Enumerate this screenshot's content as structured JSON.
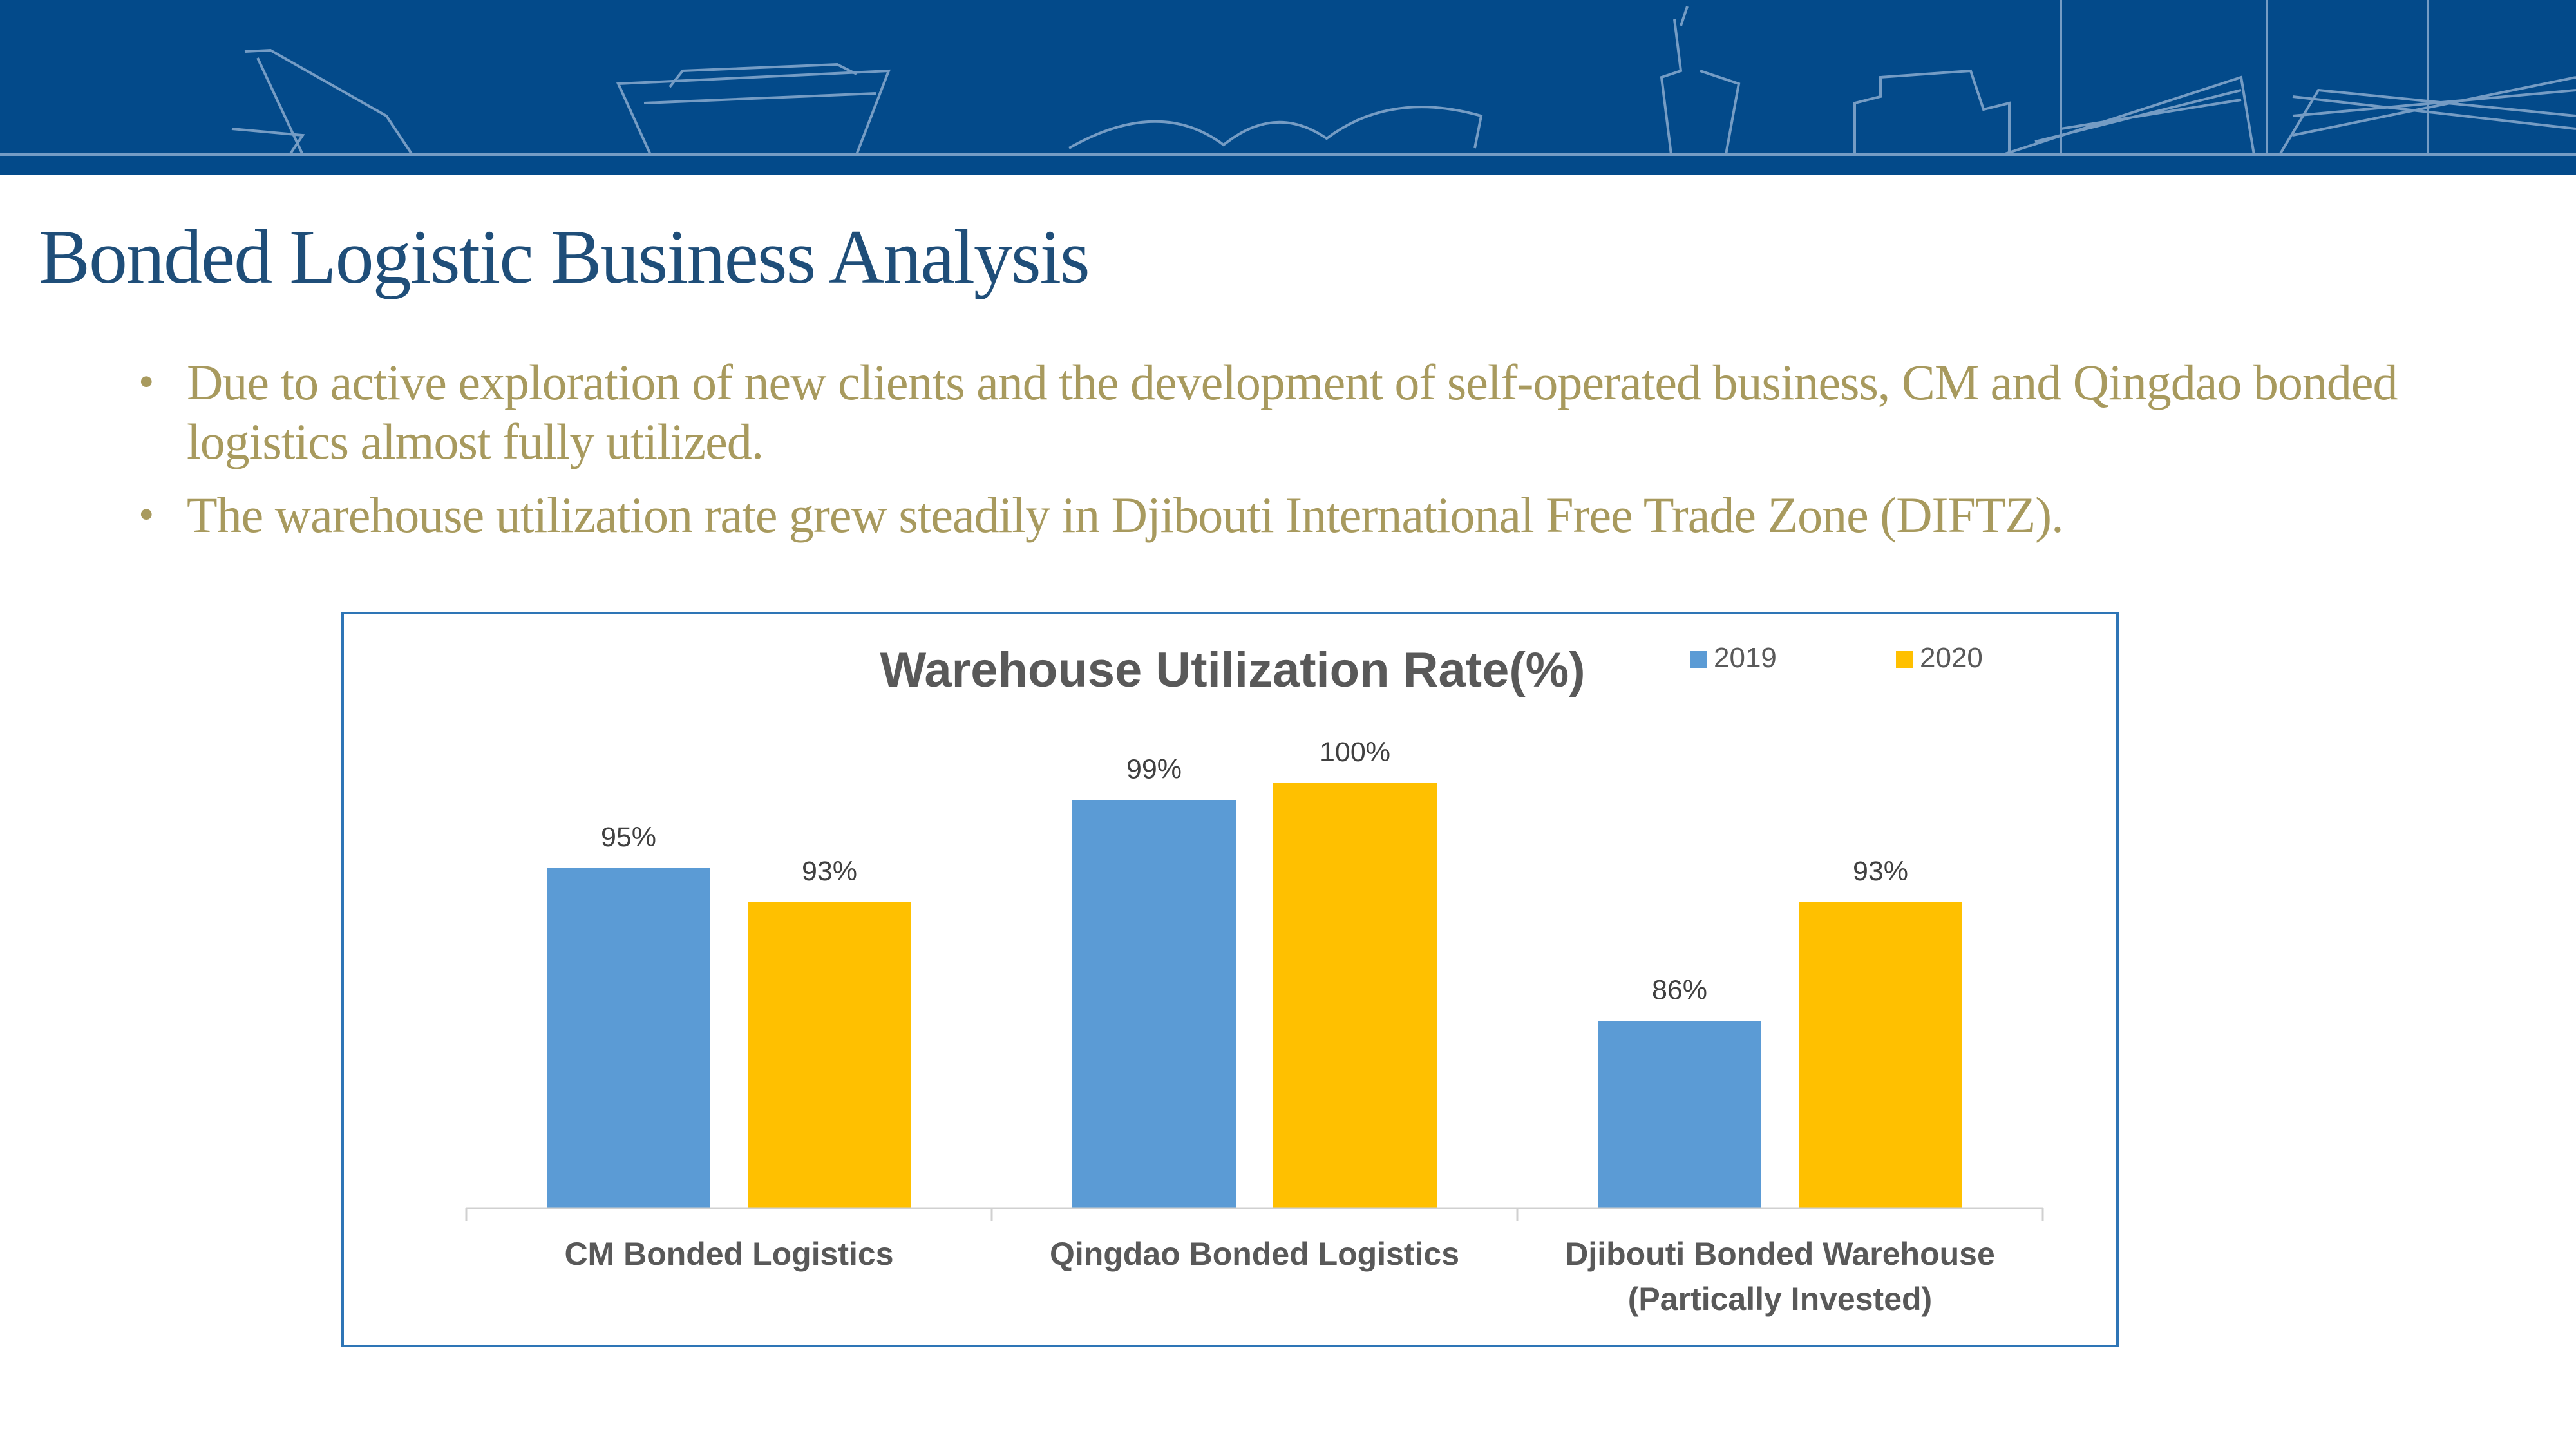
{
  "slide": {
    "title": "Bonded Logistic Business Analysis",
    "bullets": [
      "Due to active exploration of new clients and the development of self-operated business, CM and Qingdao bonded logistics almost fully utilized.",
      "The warehouse utilization rate grew steadily in Djibouti International Free Trade Zone (DIFTZ)."
    ]
  },
  "colors": {
    "banner": "#034a8a",
    "title": "#1f4e79",
    "bullet_text": "#a89a5e",
    "chart_border": "#2e75b6"
  },
  "chart_data": {
    "type": "bar",
    "title": "Warehouse Utilization Rate(%)",
    "categories": [
      [
        "CM Bonded Logistics"
      ],
      [
        "Qingdao Bonded Logistics"
      ],
      [
        "Djibouti Bonded Warehouse",
        "(Partically Invested)"
      ]
    ],
    "series": [
      {
        "name": "2019",
        "color": "#5b9bd5",
        "values": [
          95,
          99,
          86
        ],
        "labels": [
          "95%",
          "99%",
          "86%"
        ]
      },
      {
        "name": "2020",
        "color": "#ffc000",
        "values": [
          93,
          100,
          93
        ],
        "labels": [
          "93%",
          "100%",
          "93%"
        ]
      }
    ],
    "ylim": [
      75,
      100
    ],
    "grid": false,
    "legend": "top-right"
  }
}
